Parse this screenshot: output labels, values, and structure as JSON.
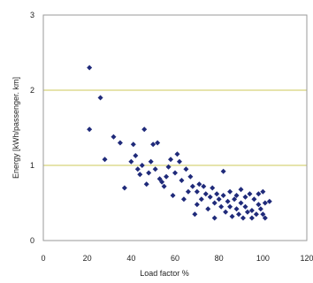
{
  "chart_data": {
    "type": "scatter",
    "title": "",
    "xlabel": "Load factor %",
    "ylabel": "Energy [kWh/passenger. km]",
    "xlim": [
      0,
      120
    ],
    "ylim": [
      0,
      3
    ],
    "xticks": [
      "0",
      "20",
      "40",
      "60",
      "80",
      "100",
      "120"
    ],
    "yticks": [
      "0",
      "1",
      "2",
      "3"
    ],
    "grid": "horizontal",
    "gridline_color": "#d8d47a",
    "marker_color": "#1f2a7a",
    "series": [
      {
        "points": [
          [
            21,
            2.3
          ],
          [
            26,
            1.9
          ],
          [
            28,
            1.08
          ],
          [
            21,
            1.48
          ],
          [
            32,
            1.38
          ],
          [
            35,
            1.3
          ],
          [
            37,
            0.7
          ],
          [
            40,
            1.05
          ],
          [
            41,
            1.28
          ],
          [
            42,
            1.13
          ],
          [
            43,
            0.95
          ],
          [
            44,
            0.88
          ],
          [
            45,
            1.0
          ],
          [
            46,
            1.48
          ],
          [
            47,
            0.75
          ],
          [
            48,
            0.9
          ],
          [
            49,
            1.05
          ],
          [
            50,
            1.28
          ],
          [
            51,
            0.95
          ],
          [
            52,
            1.3
          ],
          [
            53,
            0.82
          ],
          [
            54,
            0.78
          ],
          [
            55,
            0.72
          ],
          [
            56,
            0.85
          ],
          [
            57,
            0.98
          ],
          [
            58,
            1.08
          ],
          [
            59,
            0.6
          ],
          [
            60,
            0.9
          ],
          [
            61,
            1.15
          ],
          [
            62,
            1.05
          ],
          [
            63,
            0.8
          ],
          [
            64,
            0.55
          ],
          [
            65,
            0.95
          ],
          [
            66,
            0.65
          ],
          [
            67,
            0.85
          ],
          [
            68,
            0.72
          ],
          [
            69,
            0.35
          ],
          [
            70,
            0.65
          ],
          [
            70,
            0.48
          ],
          [
            71,
            0.75
          ],
          [
            72,
            0.55
          ],
          [
            73,
            0.72
          ],
          [
            74,
            0.62
          ],
          [
            75,
            0.42
          ],
          [
            76,
            0.58
          ],
          [
            77,
            0.7
          ],
          [
            78,
            0.5
          ],
          [
            78,
            0.3
          ],
          [
            79,
            0.62
          ],
          [
            80,
            0.55
          ],
          [
            81,
            0.45
          ],
          [
            82,
            0.6
          ],
          [
            82,
            0.92
          ],
          [
            83,
            0.38
          ],
          [
            84,
            0.52
          ],
          [
            85,
            0.65
          ],
          [
            85,
            0.45
          ],
          [
            86,
            0.32
          ],
          [
            87,
            0.55
          ],
          [
            88,
            0.42
          ],
          [
            88,
            0.6
          ],
          [
            89,
            0.35
          ],
          [
            90,
            0.5
          ],
          [
            90,
            0.68
          ],
          [
            91,
            0.3
          ],
          [
            92,
            0.45
          ],
          [
            92,
            0.58
          ],
          [
            93,
            0.38
          ],
          [
            94,
            0.62
          ],
          [
            95,
            0.4
          ],
          [
            95,
            0.3
          ],
          [
            96,
            0.55
          ],
          [
            97,
            0.35
          ],
          [
            98,
            0.48
          ],
          [
            98,
            0.62
          ],
          [
            99,
            0.42
          ],
          [
            100,
            0.65
          ],
          [
            100,
            0.35
          ],
          [
            101,
            0.5
          ],
          [
            101,
            0.3
          ],
          [
            103,
            0.52
          ]
        ]
      }
    ]
  }
}
